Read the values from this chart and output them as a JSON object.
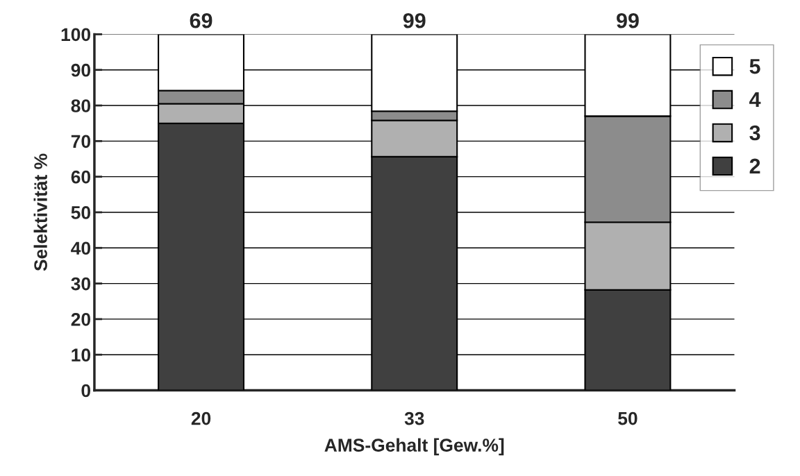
{
  "chart_data": {
    "type": "bar",
    "stacked": true,
    "xlabel": "AMS-Gehalt [Gew.%]",
    "ylabel": "Selektivität %",
    "categories": [
      "20",
      "33",
      "50"
    ],
    "series": [
      {
        "name": "2",
        "color": "#404040",
        "values": [
          75,
          65.6,
          28.2
        ]
      },
      {
        "name": "3",
        "color": "#b0b0b0",
        "values": [
          5.5,
          10.2,
          19
        ]
      },
      {
        "name": "4",
        "color": "#8c8c8c",
        "values": [
          3.7,
          2.6,
          29.8
        ]
      },
      {
        "name": "5",
        "color": "#ffffff",
        "values": [
          15.8,
          21.6,
          23
        ]
      }
    ],
    "annotations": [
      {
        "text": "69",
        "x": "20",
        "y": 100
      },
      {
        "text": "99",
        "x": "33",
        "y": 100
      },
      {
        "text": "99",
        "x": "50",
        "y": 100
      }
    ],
    "ylim": [
      0,
      100
    ],
    "yticks": [
      0,
      10,
      20,
      30,
      40,
      50,
      60,
      70,
      80,
      90,
      100
    ],
    "grid": "y",
    "legend": "top right"
  }
}
